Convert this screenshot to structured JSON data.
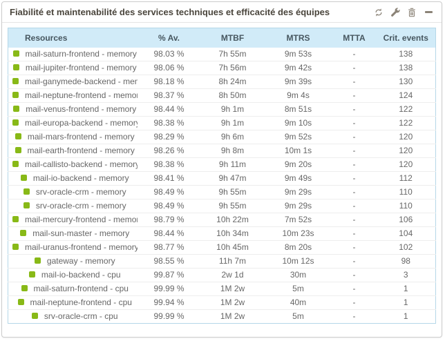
{
  "widget": {
    "title": "Fiabilité et maintenabilité des services techniques et efficacité des équipes",
    "toolbar_icons": [
      "refresh-icon",
      "wrench-icon",
      "trash-icon",
      "minimize-icon"
    ]
  },
  "colors": {
    "status_ok": "#88b917",
    "table_header_bg": "#d1ebf8",
    "table_border": "#b5d7e8",
    "icon_gray": "#8b8377"
  },
  "table": {
    "columns": [
      {
        "key": "resources",
        "label": "Resources"
      },
      {
        "key": "availability",
        "label": "% Av."
      },
      {
        "key": "mtbf",
        "label": "MTBF"
      },
      {
        "key": "mtrs",
        "label": "MTRS"
      },
      {
        "key": "mtta",
        "label": "MTTA"
      },
      {
        "key": "crit_events",
        "label": "Crit. events"
      }
    ],
    "rows": [
      {
        "name": "mail-saturn-frontend - memory",
        "availability": "98.03 %",
        "mtbf": "7h 55m",
        "mtrs": "9m 53s",
        "mtta": "-",
        "crit_events": "138"
      },
      {
        "name": "mail-jupiter-frontend - memory",
        "availability": "98.06 %",
        "mtbf": "7h 56m",
        "mtrs": "9m 42s",
        "mtta": "-",
        "crit_events": "138"
      },
      {
        "name": "mail-ganymede-backend - memory",
        "availability": "98.18 %",
        "mtbf": "8h 24m",
        "mtrs": "9m 39s",
        "mtta": "-",
        "crit_events": "130"
      },
      {
        "name": "mail-neptune-frontend - memory",
        "availability": "98.37 %",
        "mtbf": "8h 50m",
        "mtrs": "9m 4s",
        "mtta": "-",
        "crit_events": "124"
      },
      {
        "name": "mail-venus-frontend - memory",
        "availability": "98.44 %",
        "mtbf": "9h 1m",
        "mtrs": "8m 51s",
        "mtta": "-",
        "crit_events": "122"
      },
      {
        "name": "mail-europa-backend - memory",
        "availability": "98.38 %",
        "mtbf": "9h 1m",
        "mtrs": "9m 10s",
        "mtta": "-",
        "crit_events": "122"
      },
      {
        "name": "mail-mars-frontend - memory",
        "availability": "98.29 %",
        "mtbf": "9h 6m",
        "mtrs": "9m 52s",
        "mtta": "-",
        "crit_events": "120"
      },
      {
        "name": "mail-earth-frontend - memory",
        "availability": "98.26 %",
        "mtbf": "9h 8m",
        "mtrs": "10m 1s",
        "mtta": "-",
        "crit_events": "120"
      },
      {
        "name": "mail-callisto-backend - memory",
        "availability": "98.38 %",
        "mtbf": "9h 11m",
        "mtrs": "9m 20s",
        "mtta": "-",
        "crit_events": "120"
      },
      {
        "name": "mail-io-backend - memory",
        "availability": "98.41 %",
        "mtbf": "9h 47m",
        "mtrs": "9m 49s",
        "mtta": "-",
        "crit_events": "112"
      },
      {
        "name": "srv-oracle-crm - memory",
        "availability": "98.49 %",
        "mtbf": "9h 55m",
        "mtrs": "9m 29s",
        "mtta": "-",
        "crit_events": "110"
      },
      {
        "name": "srv-oracle-crm - memory",
        "availability": "98.49 %",
        "mtbf": "9h 55m",
        "mtrs": "9m 29s",
        "mtta": "-",
        "crit_events": "110"
      },
      {
        "name": "mail-mercury-frontend - memory",
        "availability": "98.79 %",
        "mtbf": "10h 22m",
        "mtrs": "7m 52s",
        "mtta": "-",
        "crit_events": "106"
      },
      {
        "name": "mail-sun-master - memory",
        "availability": "98.44 %",
        "mtbf": "10h 34m",
        "mtrs": "10m 23s",
        "mtta": "-",
        "crit_events": "104"
      },
      {
        "name": "mail-uranus-frontend - memory",
        "availability": "98.77 %",
        "mtbf": "10h 45m",
        "mtrs": "8m 20s",
        "mtta": "-",
        "crit_events": "102"
      },
      {
        "name": "gateway - memory",
        "availability": "98.55 %",
        "mtbf": "11h 7m",
        "mtrs": "10m 12s",
        "mtta": "-",
        "crit_events": "98"
      },
      {
        "name": "mail-io-backend - cpu",
        "availability": "99.87 %",
        "mtbf": "2w 1d",
        "mtrs": "30m",
        "mtta": "-",
        "crit_events": "3"
      },
      {
        "name": "mail-saturn-frontend - cpu",
        "availability": "99.99 %",
        "mtbf": "1M 2w",
        "mtrs": "5m",
        "mtta": "-",
        "crit_events": "1"
      },
      {
        "name": "mail-neptune-frontend - cpu",
        "availability": "99.94 %",
        "mtbf": "1M 2w",
        "mtrs": "40m",
        "mtta": "-",
        "crit_events": "1"
      },
      {
        "name": "srv-oracle-crm - cpu",
        "availability": "99.99 %",
        "mtbf": "1M 2w",
        "mtrs": "5m",
        "mtta": "-",
        "crit_events": "1"
      }
    ]
  }
}
